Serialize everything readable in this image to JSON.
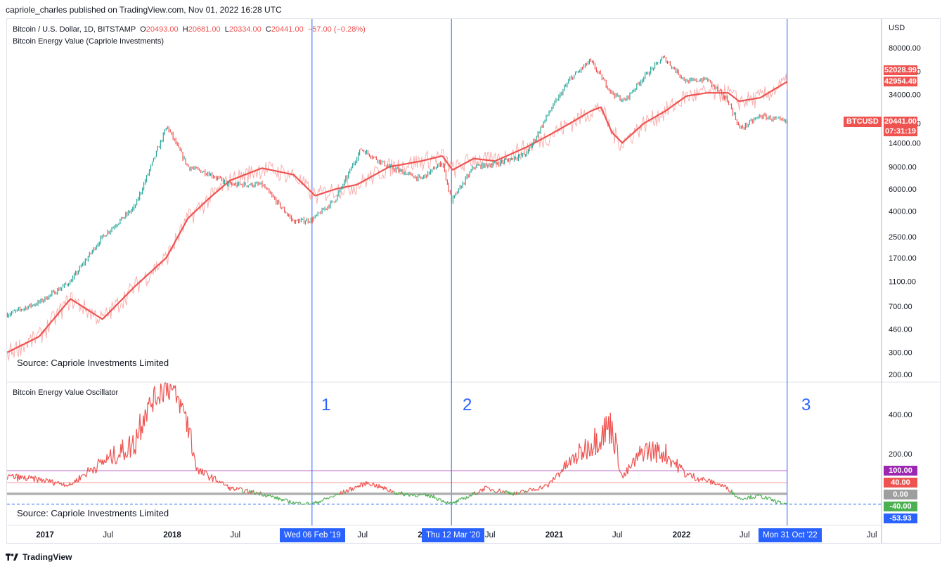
{
  "publisher": "capriole_charles published on TradingView.com, Nov 01, 2022 16:28 UTC",
  "legend": {
    "symbol": "Bitcoin / U.S. Dollar, 1D, BITSTAMP",
    "o_label": "O",
    "o_value": "20493.00",
    "h_label": "H",
    "h_value": "20681.00",
    "l_label": "L",
    "l_value": "20334.00",
    "c_label": "C",
    "c_value": "20441.00",
    "change": "−57.00 (−0.28%)",
    "indicator": "Bitcoin Energy Value (Capriole Investments)"
  },
  "oscillator_title": "Bitcoin Energy Value Oscillator",
  "source_label": "Source: Capriole Investments Limited",
  "currency": "USD",
  "markers": [
    "1",
    "2",
    "3"
  ],
  "price_tags": {
    "energy_value_a": "52028.99",
    "energy_value_b": "42954.49",
    "symbol": "BTCUSD",
    "last_price": "20441.00",
    "countdown": "07:31:19"
  },
  "osc_tags": [
    "100.00",
    "40.00",
    "0.00",
    "-40.00",
    "-53.93"
  ],
  "date_tags": [
    "Wed 06 Feb '19",
    "Thu 12 Mar '20",
    "Mon 31 Oct '22"
  ],
  "footer": {
    "brand": "TradingView",
    "logo": "tradingview-logo"
  },
  "colors": {
    "price_up": "#26a69a",
    "price_down": "#ef5350",
    "energy": "#ef5350",
    "energy_raw": "#f7a9a7",
    "osc_hot": "#ef5350",
    "osc_cool": "#4caf50",
    "band_100": "#9c27b0",
    "band_40": "#ef5350",
    "band_0": "#9e9e9e",
    "marker": "#2962ff"
  },
  "chart_data": [
    {
      "type": "line",
      "title": "Bitcoin / U.S. Dollar, 1D, BITSTAMP",
      "scale": "log",
      "y_axis_ticks": [
        80000,
        52000,
        34000,
        20000,
        14000,
        9000,
        6000,
        4000,
        2500,
        1700,
        1100,
        700,
        460,
        300,
        200
      ],
      "x_axis_ticks": [
        "2017",
        "Jul",
        "2018",
        "Jul",
        "2019",
        "Jul",
        "2020",
        "Jul",
        "2021",
        "Jul",
        "2022",
        "Jul",
        "2023",
        "Jul"
      ],
      "series": [
        {
          "name": "BTCUSD",
          "x": [
            "2016-09",
            "2016-12",
            "2017-03",
            "2017-06",
            "2017-09",
            "2017-12-17",
            "2018-02",
            "2018-04",
            "2018-06",
            "2018-09",
            "2018-12-15",
            "2019-02-06",
            "2019-04",
            "2019-06-26",
            "2019-09",
            "2019-12",
            "2020-02",
            "2020-03-12",
            "2020-05",
            "2020-07",
            "2020-10",
            "2020-12",
            "2021-02",
            "2021-04-14",
            "2021-06",
            "2021-07-20",
            "2021-09",
            "2021-11-10",
            "2022-01",
            "2022-03",
            "2022-05",
            "2022-06-18",
            "2022-08",
            "2022-10-31"
          ],
          "values": [
            600,
            750,
            1100,
            2500,
            4300,
            19000,
            9000,
            8000,
            6500,
            6500,
            3300,
            3400,
            5000,
            12500,
            9000,
            7200,
            9800,
            4800,
            9000,
            9500,
            11500,
            24000,
            45000,
            63000,
            35000,
            30000,
            47000,
            67000,
            43000,
            45000,
            30000,
            18000,
            23000,
            20441
          ]
        },
        {
          "name": "Bitcoin Energy Value",
          "x": [
            "2016-09",
            "2016-12",
            "2017-03",
            "2017-06",
            "2017-09",
            "2017-12",
            "2018-02",
            "2018-04",
            "2018-06",
            "2018-09",
            "2018-12",
            "2019-02",
            "2019-04",
            "2019-06",
            "2019-09",
            "2019-12",
            "2020-02",
            "2020-03",
            "2020-05",
            "2020-07",
            "2020-10",
            "2020-12",
            "2021-02",
            "2021-04",
            "2021-05",
            "2021-06",
            "2021-07",
            "2021-09",
            "2021-11",
            "2022-01",
            "2022-03",
            "2022-05",
            "2022-06",
            "2022-08",
            "2022-10-31"
          ],
          "values": [
            300,
            400,
            800,
            550,
            1000,
            1700,
            3500,
            5000,
            7000,
            8800,
            7800,
            5300,
            6000,
            6500,
            9000,
            10000,
            11000,
            8500,
            10500,
            10000,
            13000,
            16000,
            20000,
            25000,
            27000,
            17000,
            14000,
            20000,
            25000,
            33000,
            35000,
            35000,
            30000,
            32000,
            42954
          ]
        }
      ]
    },
    {
      "type": "line",
      "title": "Bitcoin Energy Value Oscillator",
      "y_axis_ticks": [
        400,
        200,
        100,
        40,
        0,
        -40,
        -53.93
      ],
      "reference_lines": [
        100,
        40,
        0,
        -53.93
      ],
      "series": [
        {
          "name": "Bitcoin Energy Value Oscillator",
          "x": [
            "2016-09",
            "2016-12",
            "2017-03",
            "2017-06",
            "2017-09",
            "2017-12-17",
            "2018-03",
            "2018-06",
            "2018-09",
            "2018-12",
            "2019-02-06",
            "2019-05",
            "2019-07",
            "2019-10",
            "2020-01",
            "2020-03-12",
            "2020-06",
            "2020-09",
            "2020-12",
            "2021-02",
            "2021-04",
            "2021-06",
            "2021-07",
            "2021-09",
            "2021-11",
            "2022-01",
            "2022-03",
            "2022-05",
            "2022-06",
            "2022-08",
            "2022-10-31"
          ],
          "values": [
            70,
            55,
            30,
            150,
            250,
            900,
            100,
            20,
            0,
            -40,
            -45,
            10,
            40,
            0,
            -10,
            -45,
            20,
            0,
            30,
            150,
            250,
            350,
            60,
            220,
            200,
            80,
            50,
            20,
            -20,
            -10,
            -50
          ]
        }
      ]
    }
  ]
}
